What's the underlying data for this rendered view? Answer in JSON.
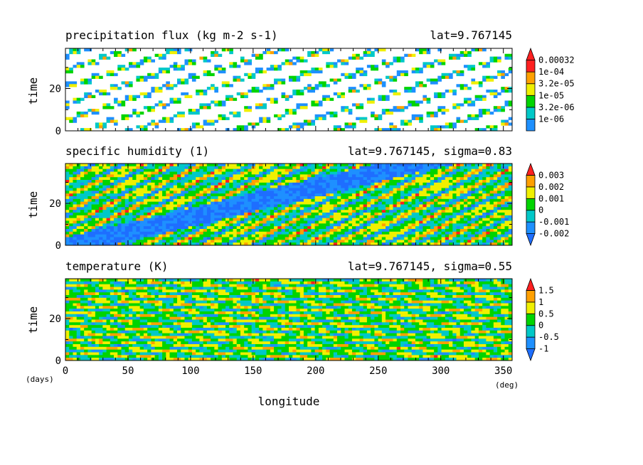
{
  "figure": {
    "x_axis_label": "longitude",
    "x_unit": "(deg)",
    "time_unit": "(days)",
    "x_ticks": [
      0,
      50,
      100,
      150,
      200,
      250,
      300,
      350
    ]
  },
  "chart_data": [
    {
      "type": "heatmap",
      "title": "precipitation flux (kg m-2 s-1)",
      "subtitle": "lat=9.767145",
      "ylabel": "time",
      "xlim": [
        0,
        357
      ],
      "ylim": [
        0,
        39
      ],
      "y_ticks": [
        0,
        20
      ],
      "pattern": "sparse",
      "colorbar": {
        "levels": [
          "1e-06",
          "3.2e-06",
          "1e-05",
          "3.2e-05",
          "1e-04",
          "0.00032"
        ],
        "colors": [
          "#1e90ff",
          "#00c8c8",
          "#00d400",
          "#f0f000",
          "#ffa000",
          "#ff2020",
          "#ff2020"
        ],
        "extend": "max"
      }
    },
    {
      "type": "heatmap",
      "title": "specific humidity (1)",
      "subtitle": "lat=9.767145, sigma=0.83",
      "ylabel": "time",
      "xlim": [
        0,
        357
      ],
      "ylim": [
        0,
        39
      ],
      "y_ticks": [
        0,
        20
      ],
      "pattern": "band",
      "colorbar": {
        "levels": [
          "-0.002",
          "-0.001",
          "0",
          "0.001",
          "0.002",
          "0.003"
        ],
        "colors": [
          "#1e6eff",
          "#1e90ff",
          "#00c8c8",
          "#00d400",
          "#f0f000",
          "#ffa000",
          "#ff2020"
        ],
        "extend": "both"
      }
    },
    {
      "type": "heatmap",
      "title": "temperature (K)",
      "subtitle": "lat=9.767145, sigma=0.55",
      "ylabel": "time",
      "xlim": [
        0,
        357
      ],
      "ylim": [
        0,
        39
      ],
      "y_ticks": [
        0,
        20
      ],
      "pattern": "streak",
      "colorbar": {
        "levels": [
          "-1",
          "-0.5",
          "0",
          "0.5",
          "1",
          "1.5"
        ],
        "colors": [
          "#1e6eff",
          "#1e90ff",
          "#00c8c8",
          "#00d400",
          "#f0f000",
          "#ffa000",
          "#ff2020"
        ],
        "extend": "both"
      }
    }
  ]
}
